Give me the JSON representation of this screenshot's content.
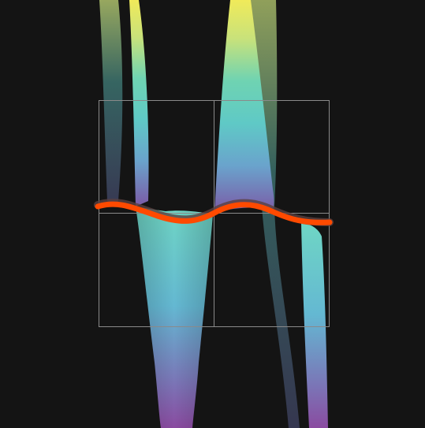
{
  "scene": {
    "background": "#141414",
    "frame_color": "#8a8a8a",
    "curve_color": "#ff4a00",
    "curve_shadow": "#5a4040",
    "surface_gradient": [
      "#f0ea5a",
      "#7fd6a0",
      "#5fc9bd",
      "#6aaed0",
      "#7a6fb0",
      "#6a3a8a"
    ]
  }
}
